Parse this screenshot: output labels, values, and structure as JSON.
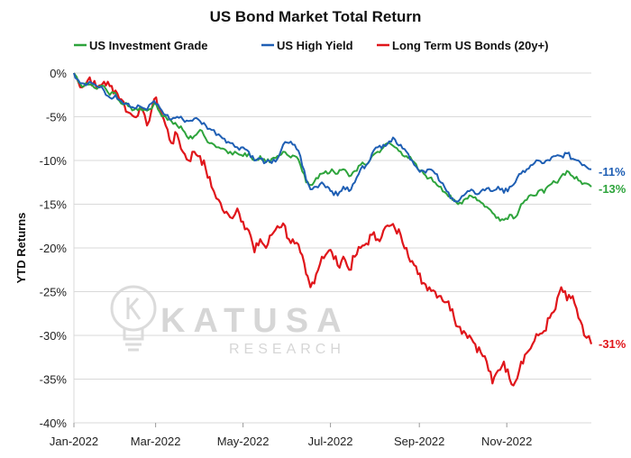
{
  "chart_data": {
    "type": "line",
    "title": "US Bond Market Total Return",
    "ylabel": "YTD Returns",
    "xlabel": "",
    "ylim": [
      -40,
      0
    ],
    "yticks": [
      0,
      -5,
      -10,
      -15,
      -20,
      -25,
      -30,
      -35,
      -40
    ],
    "ytick_suffix": "%",
    "x_range": [
      "2022-01-03",
      "2022-12-30"
    ],
    "xticks": [
      {
        "date": "2022-01-03",
        "label": "Jan-2022"
      },
      {
        "date": "2022-03-01",
        "label": "Mar-2022"
      },
      {
        "date": "2022-05-01",
        "label": "May-2022"
      },
      {
        "date": "2022-07-01",
        "label": "Jul-2022"
      },
      {
        "date": "2022-09-01",
        "label": "Sep-2022"
      },
      {
        "date": "2022-11-01",
        "label": "Nov-2022"
      }
    ],
    "grid": true,
    "legend": "top",
    "watermark": {
      "name": "KATUSA",
      "sub": "RESEARCH",
      "icon": "lightbulb-k-icon"
    },
    "series": [
      {
        "name": "US Investment Grade",
        "color": "#2ea43c",
        "end_label": "-13%",
        "points": [
          [
            "2022-01-03",
            0
          ],
          [
            "2022-01-06",
            -1
          ],
          [
            "2022-01-10",
            -1.5
          ],
          [
            "2022-01-14",
            -1.3
          ],
          [
            "2022-01-19",
            -1.8
          ],
          [
            "2022-01-24",
            -1.5
          ],
          [
            "2022-01-28",
            -2.5
          ],
          [
            "2022-02-01",
            -2.3
          ],
          [
            "2022-02-05",
            -3.5
          ],
          [
            "2022-02-10",
            -3.8
          ],
          [
            "2022-02-14",
            -4.2
          ],
          [
            "2022-02-18",
            -4
          ],
          [
            "2022-02-23",
            -4.3
          ],
          [
            "2022-02-28",
            -3.5
          ],
          [
            "2022-03-04",
            -4.5
          ],
          [
            "2022-03-08",
            -5
          ],
          [
            "2022-03-12",
            -5.5
          ],
          [
            "2022-03-16",
            -6
          ],
          [
            "2022-03-20",
            -6.5
          ],
          [
            "2022-03-24",
            -7.5
          ],
          [
            "2022-03-28",
            -7.2
          ],
          [
            "2022-04-01",
            -6.5
          ],
          [
            "2022-04-05",
            -7.5
          ],
          [
            "2022-04-09",
            -8
          ],
          [
            "2022-04-14",
            -8.5
          ],
          [
            "2022-04-18",
            -8.7
          ],
          [
            "2022-04-22",
            -9
          ],
          [
            "2022-04-27",
            -9.2
          ],
          [
            "2022-05-01",
            -9.5
          ],
          [
            "2022-05-05",
            -9.2
          ],
          [
            "2022-05-09",
            -10
          ],
          [
            "2022-05-13",
            -9.5
          ],
          [
            "2022-05-17",
            -10.2
          ],
          [
            "2022-05-21",
            -9.8
          ],
          [
            "2022-05-25",
            -9.5
          ],
          [
            "2022-05-29",
            -9
          ],
          [
            "2022-06-02",
            -9.5
          ],
          [
            "2022-06-06",
            -9.5
          ],
          [
            "2022-06-10",
            -10.5
          ],
          [
            "2022-06-14",
            -12.5
          ],
          [
            "2022-06-17",
            -12.8
          ],
          [
            "2022-06-21",
            -12
          ],
          [
            "2022-06-25",
            -11.5
          ],
          [
            "2022-06-29",
            -11.5
          ],
          [
            "2022-07-02",
            -11
          ],
          [
            "2022-07-06",
            -11.5
          ],
          [
            "2022-07-10",
            -11
          ],
          [
            "2022-07-14",
            -11.8
          ],
          [
            "2022-07-18",
            -11.2
          ],
          [
            "2022-07-22",
            -10.5
          ],
          [
            "2022-07-26",
            -10.5
          ],
          [
            "2022-07-30",
            -9.5
          ],
          [
            "2022-08-03",
            -9
          ],
          [
            "2022-08-07",
            -8.5
          ],
          [
            "2022-08-11",
            -8
          ],
          [
            "2022-08-15",
            -8.5
          ],
          [
            "2022-08-19",
            -9
          ],
          [
            "2022-08-23",
            -9.5
          ],
          [
            "2022-08-27",
            -10
          ],
          [
            "2022-08-31",
            -11
          ],
          [
            "2022-09-04",
            -11.5
          ],
          [
            "2022-09-08",
            -12
          ],
          [
            "2022-09-12",
            -12.5
          ],
          [
            "2022-09-16",
            -13
          ],
          [
            "2022-09-20",
            -13.8
          ],
          [
            "2022-09-24",
            -14.5
          ],
          [
            "2022-09-28",
            -15
          ],
          [
            "2022-10-02",
            -14.5
          ],
          [
            "2022-10-06",
            -14
          ],
          [
            "2022-10-10",
            -14.2
          ],
          [
            "2022-10-14",
            -14.8
          ],
          [
            "2022-10-18",
            -15.3
          ],
          [
            "2022-10-22",
            -16
          ],
          [
            "2022-10-26",
            -16.5
          ],
          [
            "2022-10-30",
            -16.8
          ],
          [
            "2022-11-03",
            -16.2
          ],
          [
            "2022-11-07",
            -16.5
          ],
          [
            "2022-11-11",
            -15
          ],
          [
            "2022-11-15",
            -14.5
          ],
          [
            "2022-11-19",
            -14
          ],
          [
            "2022-11-23",
            -13.5
          ],
          [
            "2022-11-27",
            -13.7
          ],
          [
            "2022-12-01",
            -12.8
          ],
          [
            "2022-12-05",
            -12.5
          ],
          [
            "2022-12-09",
            -11.8
          ],
          [
            "2022-12-13",
            -11.2
          ],
          [
            "2022-12-17",
            -11.8
          ],
          [
            "2022-12-21",
            -12.3
          ],
          [
            "2022-12-25",
            -12.6
          ],
          [
            "2022-12-30",
            -13
          ]
        ]
      },
      {
        "name": "US High Yield",
        "color": "#1f5fb4",
        "end_label": "-11%",
        "points": [
          [
            "2022-01-03",
            0
          ],
          [
            "2022-01-06",
            -0.8
          ],
          [
            "2022-01-10",
            -1.2
          ],
          [
            "2022-01-14",
            -1
          ],
          [
            "2022-01-19",
            -1.5
          ],
          [
            "2022-01-24",
            -2
          ],
          [
            "2022-01-28",
            -2.8
          ],
          [
            "2022-02-01",
            -2.5
          ],
          [
            "2022-02-05",
            -3.2
          ],
          [
            "2022-02-10",
            -3.5
          ],
          [
            "2022-02-14",
            -4
          ],
          [
            "2022-02-18",
            -3.8
          ],
          [
            "2022-02-23",
            -4.2
          ],
          [
            "2022-02-28",
            -3.2
          ],
          [
            "2022-03-04",
            -4
          ],
          [
            "2022-03-08",
            -4.8
          ],
          [
            "2022-03-12",
            -5.3
          ],
          [
            "2022-03-16",
            -5
          ],
          [
            "2022-03-20",
            -5.3
          ],
          [
            "2022-03-24",
            -5.5
          ],
          [
            "2022-03-28",
            -5.2
          ],
          [
            "2022-04-01",
            -5.5
          ],
          [
            "2022-04-05",
            -6
          ],
          [
            "2022-04-09",
            -6.5
          ],
          [
            "2022-04-14",
            -7
          ],
          [
            "2022-04-18",
            -7.5
          ],
          [
            "2022-04-22",
            -8
          ],
          [
            "2022-04-27",
            -8.5
          ],
          [
            "2022-05-01",
            -8.5
          ],
          [
            "2022-05-05",
            -9
          ],
          [
            "2022-05-09",
            -10
          ],
          [
            "2022-05-13",
            -9.8
          ],
          [
            "2022-05-17",
            -10.2
          ],
          [
            "2022-05-21",
            -10.3
          ],
          [
            "2022-05-25",
            -9.8
          ],
          [
            "2022-05-29",
            -8.2
          ],
          [
            "2022-06-02",
            -8
          ],
          [
            "2022-06-06",
            -8.2
          ],
          [
            "2022-06-10",
            -9.5
          ],
          [
            "2022-06-14",
            -12.2
          ],
          [
            "2022-06-17",
            -13.3
          ],
          [
            "2022-06-21",
            -13
          ],
          [
            "2022-06-25",
            -12.5
          ],
          [
            "2022-06-29",
            -13
          ],
          [
            "2022-07-02",
            -13.5
          ],
          [
            "2022-07-06",
            -14
          ],
          [
            "2022-07-10",
            -13
          ],
          [
            "2022-07-14",
            -13.5
          ],
          [
            "2022-07-18",
            -12.5
          ],
          [
            "2022-07-22",
            -11
          ],
          [
            "2022-07-26",
            -10.5
          ],
          [
            "2022-07-30",
            -9.2
          ],
          [
            "2022-08-03",
            -8.5
          ],
          [
            "2022-08-07",
            -8.2
          ],
          [
            "2022-08-11",
            -7.8
          ],
          [
            "2022-08-15",
            -7.6
          ],
          [
            "2022-08-19",
            -8.2
          ],
          [
            "2022-08-23",
            -9
          ],
          [
            "2022-08-27",
            -10
          ],
          [
            "2022-08-31",
            -11
          ],
          [
            "2022-09-04",
            -11.2
          ],
          [
            "2022-09-08",
            -11
          ],
          [
            "2022-09-12",
            -11.5
          ],
          [
            "2022-09-16",
            -12.5
          ],
          [
            "2022-09-20",
            -13.5
          ],
          [
            "2022-09-24",
            -14.3
          ],
          [
            "2022-09-28",
            -14.7
          ],
          [
            "2022-10-02",
            -14
          ],
          [
            "2022-10-06",
            -13.5
          ],
          [
            "2022-10-10",
            -13.8
          ],
          [
            "2022-10-14",
            -13.5
          ],
          [
            "2022-10-18",
            -13.2
          ],
          [
            "2022-10-22",
            -13.5
          ],
          [
            "2022-10-26",
            -13
          ],
          [
            "2022-10-30",
            -13.7
          ],
          [
            "2022-11-03",
            -13
          ],
          [
            "2022-11-07",
            -12.5
          ],
          [
            "2022-11-11",
            -11.5
          ],
          [
            "2022-11-15",
            -11
          ],
          [
            "2022-11-19",
            -10.5
          ],
          [
            "2022-11-23",
            -10
          ],
          [
            "2022-11-27",
            -10.3
          ],
          [
            "2022-12-01",
            -10
          ],
          [
            "2022-12-05",
            -9.5
          ],
          [
            "2022-12-09",
            -9.5
          ],
          [
            "2022-12-13",
            -9.2
          ],
          [
            "2022-12-17",
            -9.8
          ],
          [
            "2022-12-21",
            -10
          ],
          [
            "2022-12-25",
            -10.5
          ],
          [
            "2022-12-30",
            -11
          ]
        ]
      },
      {
        "name": "Long Term US Bonds (20y+)",
        "color": "#e0161b",
        "end_label": "-31%",
        "points": [
          [
            "2022-01-03",
            0
          ],
          [
            "2022-01-06",
            -1
          ],
          [
            "2022-01-10",
            -1.5
          ],
          [
            "2022-01-14",
            -0.5
          ],
          [
            "2022-01-19",
            -1.8
          ],
          [
            "2022-01-24",
            -1
          ],
          [
            "2022-01-28",
            -1.5
          ],
          [
            "2022-02-01",
            -2
          ],
          [
            "2022-02-05",
            -3
          ],
          [
            "2022-02-10",
            -4.5
          ],
          [
            "2022-02-14",
            -5
          ],
          [
            "2022-02-18",
            -4
          ],
          [
            "2022-02-23",
            -6
          ],
          [
            "2022-02-28",
            -3
          ],
          [
            "2022-03-04",
            -4
          ],
          [
            "2022-03-08",
            -6
          ],
          [
            "2022-03-12",
            -8
          ],
          [
            "2022-03-16",
            -7
          ],
          [
            "2022-03-20",
            -9
          ],
          [
            "2022-03-24",
            -10
          ],
          [
            "2022-03-28",
            -9
          ],
          [
            "2022-04-01",
            -9.5
          ],
          [
            "2022-04-05",
            -11
          ],
          [
            "2022-04-09",
            -13
          ],
          [
            "2022-04-14",
            -14.5
          ],
          [
            "2022-04-18",
            -16
          ],
          [
            "2022-04-22",
            -16.5
          ],
          [
            "2022-04-27",
            -15.5
          ],
          [
            "2022-05-01",
            -17
          ],
          [
            "2022-05-05",
            -18
          ],
          [
            "2022-05-09",
            -20.5
          ],
          [
            "2022-05-13",
            -19
          ],
          [
            "2022-05-17",
            -20
          ],
          [
            "2022-05-21",
            -18.5
          ],
          [
            "2022-05-25",
            -17.5
          ],
          [
            "2022-05-29",
            -17.2
          ],
          [
            "2022-06-02",
            -19
          ],
          [
            "2022-06-06",
            -19.5
          ],
          [
            "2022-06-10",
            -20.5
          ],
          [
            "2022-06-14",
            -23
          ],
          [
            "2022-06-17",
            -24.5
          ],
          [
            "2022-06-21",
            -23
          ],
          [
            "2022-06-25",
            -21
          ],
          [
            "2022-06-29",
            -20.5
          ],
          [
            "2022-07-02",
            -20.5
          ],
          [
            "2022-07-06",
            -22
          ],
          [
            "2022-07-10",
            -21
          ],
          [
            "2022-07-14",
            -22.5
          ],
          [
            "2022-07-18",
            -21
          ],
          [
            "2022-07-22",
            -20
          ],
          [
            "2022-07-26",
            -19.5
          ],
          [
            "2022-07-30",
            -18.5
          ],
          [
            "2022-08-03",
            -19
          ],
          [
            "2022-08-07",
            -18
          ],
          [
            "2022-08-11",
            -17.5
          ],
          [
            "2022-08-15",
            -17.8
          ],
          [
            "2022-08-19",
            -18.5
          ],
          [
            "2022-08-23",
            -20
          ],
          [
            "2022-08-27",
            -21.5
          ],
          [
            "2022-08-31",
            -23
          ],
          [
            "2022-09-04",
            -24
          ],
          [
            "2022-09-08",
            -24.5
          ],
          [
            "2022-09-12",
            -25
          ],
          [
            "2022-09-16",
            -25.5
          ],
          [
            "2022-09-20",
            -26.2
          ],
          [
            "2022-09-24",
            -27
          ],
          [
            "2022-09-28",
            -29
          ],
          [
            "2022-10-02",
            -29.5
          ],
          [
            "2022-10-06",
            -30
          ],
          [
            "2022-10-10",
            -31
          ],
          [
            "2022-10-14",
            -32
          ],
          [
            "2022-10-18",
            -33
          ],
          [
            "2022-10-22",
            -35.5
          ],
          [
            "2022-10-26",
            -34
          ],
          [
            "2022-10-30",
            -33
          ],
          [
            "2022-11-03",
            -35
          ],
          [
            "2022-11-07",
            -35.3
          ],
          [
            "2022-11-11",
            -33
          ],
          [
            "2022-11-15",
            -32
          ],
          [
            "2022-11-19",
            -31
          ],
          [
            "2022-11-23",
            -30
          ],
          [
            "2022-11-27",
            -29.5
          ],
          [
            "2022-12-01",
            -28
          ],
          [
            "2022-12-05",
            -27
          ],
          [
            "2022-12-09",
            -24.5
          ],
          [
            "2022-12-13",
            -26
          ],
          [
            "2022-12-17",
            -25.5
          ],
          [
            "2022-12-21",
            -28
          ],
          [
            "2022-12-25",
            -30
          ],
          [
            "2022-12-30",
            -31
          ]
        ]
      }
    ]
  }
}
